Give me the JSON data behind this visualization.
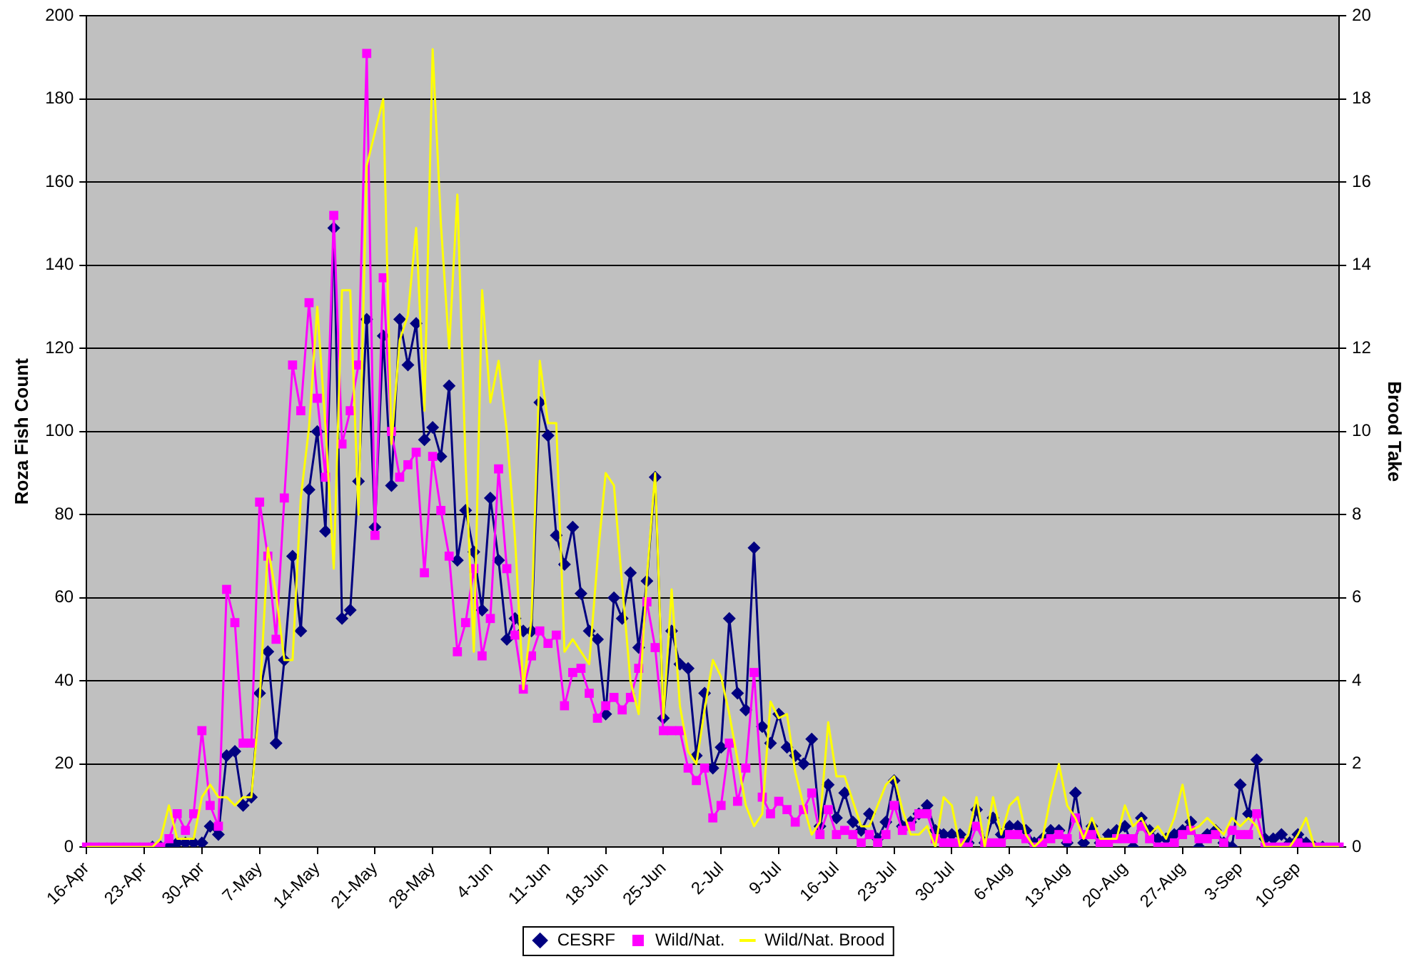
{
  "chart_data": {
    "type": "line",
    "ylabel": "Roza Fish Count",
    "y2label": "Brood Take",
    "categories": [
      "16-Apr",
      null,
      null,
      null,
      null,
      null,
      null,
      "23-Apr",
      null,
      null,
      null,
      null,
      null,
      null,
      "30-Apr",
      null,
      null,
      null,
      null,
      null,
      null,
      "7-May",
      null,
      null,
      null,
      null,
      null,
      null,
      "14-May",
      null,
      null,
      null,
      null,
      null,
      null,
      "21-May",
      null,
      null,
      null,
      null,
      null,
      null,
      "28-May",
      null,
      null,
      null,
      null,
      null,
      null,
      "4-Jun",
      null,
      null,
      null,
      null,
      null,
      null,
      "11-Jun",
      null,
      null,
      null,
      null,
      null,
      null,
      "18-Jun",
      null,
      null,
      null,
      null,
      null,
      null,
      "25-Jun",
      null,
      null,
      null,
      null,
      null,
      null,
      "2-Jul",
      null,
      null,
      null,
      null,
      null,
      null,
      "9-Jul",
      null,
      null,
      null,
      null,
      null,
      null,
      "16-Jul",
      null,
      null,
      null,
      null,
      null,
      null,
      "23-Jul",
      null,
      null,
      null,
      null,
      null,
      null,
      "30-Jul",
      null,
      null,
      null,
      null,
      null,
      null,
      "6-Aug",
      null,
      null,
      null,
      null,
      null,
      null,
      "13-Aug",
      null,
      null,
      null,
      null,
      null,
      null,
      "20-Aug",
      null,
      null,
      null,
      null,
      null,
      null,
      "27-Aug",
      null,
      null,
      null,
      null,
      null,
      null,
      "3-Sep",
      null,
      null,
      null,
      null,
      null,
      null,
      "10-Sep",
      null,
      null,
      null,
      null,
      null
    ],
    "series": [
      {
        "name": "CESRF",
        "color": "#000080",
        "marker": "diamond",
        "values": [
          null,
          null,
          null,
          null,
          null,
          null,
          null,
          null,
          0,
          0,
          0,
          1,
          1,
          1,
          1,
          5,
          3,
          22,
          23,
          10,
          12,
          37,
          47,
          25,
          45,
          70,
          52,
          86,
          100,
          76,
          149,
          55,
          57,
          88,
          127,
          77,
          123,
          87,
          127,
          116,
          126,
          98,
          101,
          94,
          111,
          69,
          81,
          71,
          57,
          84,
          69,
          50,
          55,
          52,
          52,
          107,
          99,
          75,
          68,
          77,
          61,
          52,
          50,
          32,
          60,
          55,
          66,
          48,
          64,
          89,
          31,
          52,
          44,
          43,
          22,
          37,
          19,
          24,
          55,
          37,
          33,
          72,
          29,
          25,
          32,
          24,
          22,
          20,
          26,
          5,
          15,
          7,
          13,
          6,
          4,
          8,
          2,
          6,
          16,
          5,
          6,
          8,
          10,
          4,
          3,
          3,
          3,
          1,
          9,
          1,
          7,
          3,
          5,
          5,
          4,
          1,
          2,
          4,
          4,
          1,
          13,
          1,
          5,
          1,
          3,
          4,
          5,
          0,
          7,
          4,
          2,
          2,
          3,
          4,
          6,
          0,
          3,
          4,
          1,
          0,
          15,
          8,
          21,
          2,
          2,
          3,
          1,
          3,
          1,
          0,
          0,
          null,
          null
        ]
      },
      {
        "name": "Wild/Nat.",
        "color": "#ff00ff",
        "marker": "square",
        "values": [
          0,
          0,
          0,
          0,
          0,
          0,
          0,
          0,
          0,
          0,
          2,
          8,
          4,
          8,
          28,
          10,
          5,
          62,
          54,
          25,
          25,
          83,
          70,
          50,
          84,
          116,
          105,
          131,
          108,
          89,
          152,
          97,
          105,
          116,
          191,
          75,
          137,
          100,
          89,
          92,
          95,
          66,
          94,
          81,
          70,
          47,
          54,
          67,
          46,
          55,
          91,
          67,
          51,
          38,
          46,
          52,
          49,
          51,
          34,
          42,
          43,
          37,
          31,
          34,
          36,
          33,
          36,
          43,
          59,
          48,
          28,
          28,
          28,
          19,
          16,
          19,
          7,
          10,
          25,
          11,
          19,
          42,
          12,
          8,
          11,
          9,
          6,
          9,
          13,
          3,
          9,
          3,
          4,
          3,
          1,
          3,
          1,
          3,
          10,
          4,
          5,
          8,
          8,
          2,
          1,
          1,
          1,
          0,
          5,
          1,
          1,
          1,
          3,
          3,
          2,
          0,
          1,
          2,
          3,
          2,
          7,
          3,
          3,
          1,
          1,
          2,
          2,
          2,
          5,
          2,
          0,
          0,
          1,
          3,
          4,
          2,
          2,
          3,
          1,
          4,
          3,
          3,
          8,
          0,
          0,
          0,
          0,
          1,
          0,
          0,
          0,
          0,
          0
        ]
      },
      {
        "name": "Wild/Nat. Brood",
        "color": "#ffff00",
        "marker": "none",
        "axis": "y2",
        "values": [
          0,
          0,
          0,
          0,
          0,
          0,
          0,
          0,
          0,
          0.2,
          1,
          0.2,
          0.2,
          0.2,
          1.2,
          1.5,
          1.2,
          1.2,
          1,
          1.2,
          1.2,
          3.5,
          7.2,
          6.1,
          4.5,
          4.5,
          8.4,
          10.1,
          13,
          10.1,
          6.7,
          13.4,
          13.4,
          8,
          16.4,
          17.2,
          18,
          9.7,
          12.2,
          12.8,
          14.9,
          10.5,
          19.2,
          15,
          12,
          15.7,
          9.2,
          4.7,
          13.4,
          10.7,
          11.7,
          10,
          7.4,
          3.8,
          5.5,
          11.7,
          10.2,
          10.2,
          4.7,
          5,
          4.7,
          4.4,
          6.9,
          9,
          8.7,
          6.3,
          4,
          3.2,
          6.5,
          9,
          3.1,
          6.2,
          3.4,
          2.3,
          2,
          3.3,
          4.5,
          4.1,
          3.2,
          2.1,
          1,
          0.5,
          0.8,
          3.5,
          3.1,
          3.2,
          1.8,
          1,
          0.3,
          0.6,
          3,
          1.7,
          1.7,
          1.1,
          0.5,
          0.5,
          1,
          1.5,
          1.7,
          0.9,
          0.3,
          0.3,
          0.5,
          0,
          1.2,
          1,
          0,
          0.3,
          1.2,
          0,
          1.2,
          0.3,
          1,
          1.2,
          0.3,
          0,
          0.2,
          1.2,
          2,
          1,
          0.7,
          0.2,
          0.7,
          0.2,
          0.2,
          0.2,
          1,
          0.5,
          0.7,
          0.3,
          0.5,
          0.2,
          0.7,
          1.5,
          0.4,
          0.5,
          0.7,
          0.5,
          0.3,
          0.7,
          0.5,
          0.7,
          0.5,
          0,
          0,
          0,
          0,
          0.3,
          0.7,
          0,
          0,
          0,
          0
        ]
      }
    ],
    "ylim": [
      0,
      200
    ],
    "yticks": [
      0,
      20,
      40,
      60,
      80,
      100,
      120,
      140,
      160,
      180,
      200
    ],
    "y2lim": [
      0,
      20
    ],
    "y2ticks": [
      0,
      2,
      4,
      6,
      8,
      10,
      12,
      14,
      16,
      18,
      20
    ],
    "grid": "y",
    "legend": "bottom"
  }
}
